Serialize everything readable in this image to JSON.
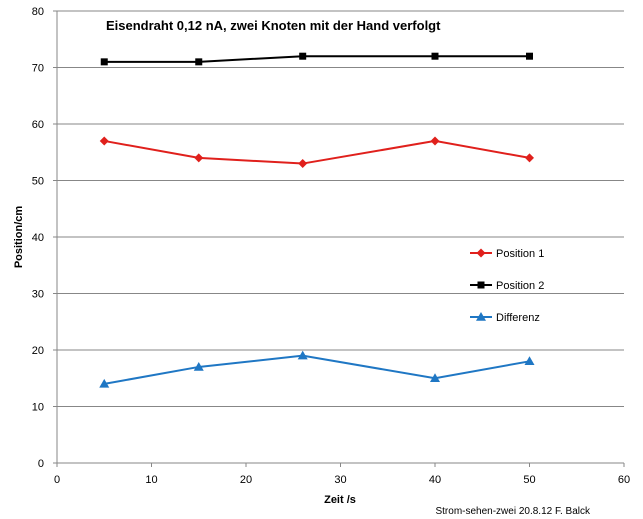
{
  "chart_data": {
    "type": "line",
    "title": "Eisendraht 0,12  nA, zwei Knoten mit der Hand verfolgt",
    "xlabel": "Zeit /s",
    "ylabel": "Position/cm",
    "xlim": [
      0,
      60
    ],
    "ylim": [
      0,
      80
    ],
    "xticks": [
      0,
      10,
      20,
      30,
      40,
      50,
      60
    ],
    "yticks": [
      0,
      10,
      20,
      30,
      40,
      50,
      60,
      70,
      80
    ],
    "grid": "horizontal",
    "legend_position": "right",
    "series": [
      {
        "name": "Position 1",
        "color": "#e0201c",
        "marker": "diamond",
        "x": [
          5,
          15,
          26,
          40,
          50
        ],
        "y": [
          57,
          54,
          53,
          57,
          54
        ]
      },
      {
        "name": "Position 2",
        "color": "#000000",
        "marker": "square",
        "x": [
          5,
          15,
          26,
          40,
          50
        ],
        "y": [
          71,
          71,
          72,
          72,
          72
        ]
      },
      {
        "name": "Differenz",
        "color": "#1f77c4",
        "marker": "triangle",
        "x": [
          5,
          15,
          26,
          40,
          50
        ],
        "y": [
          14,
          17,
          19,
          15,
          18
        ]
      }
    ],
    "footer": "Strom-sehen-zwei 20.8.12 F. Balck"
  }
}
